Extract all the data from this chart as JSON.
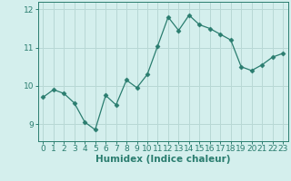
{
  "x": [
    0,
    1,
    2,
    3,
    4,
    5,
    6,
    7,
    8,
    9,
    10,
    11,
    12,
    13,
    14,
    15,
    16,
    17,
    18,
    19,
    20,
    21,
    22,
    23
  ],
  "y": [
    9.7,
    9.9,
    9.8,
    9.55,
    9.05,
    8.85,
    9.75,
    9.5,
    10.15,
    9.95,
    10.3,
    11.05,
    11.8,
    11.45,
    11.85,
    11.6,
    11.5,
    11.35,
    11.2,
    10.5,
    10.4,
    10.55,
    10.75,
    10.85
  ],
  "line_color": "#2a7d6f",
  "marker": "D",
  "marker_size": 2.5,
  "bg_color": "#d4efed",
  "grid_color": "#b8d8d5",
  "tick_color": "#2a7d6f",
  "label_color": "#2a7d6f",
  "xlabel": "Humidex (Indice chaleur)",
  "ylim": [
    8.55,
    12.2
  ],
  "yticks": [
    9,
    10,
    11,
    12
  ],
  "xticks": [
    0,
    1,
    2,
    3,
    4,
    5,
    6,
    7,
    8,
    9,
    10,
    11,
    12,
    13,
    14,
    15,
    16,
    17,
    18,
    19,
    20,
    21,
    22,
    23
  ],
  "tick_fontsize": 6.5,
  "xlabel_fontsize": 7.5
}
